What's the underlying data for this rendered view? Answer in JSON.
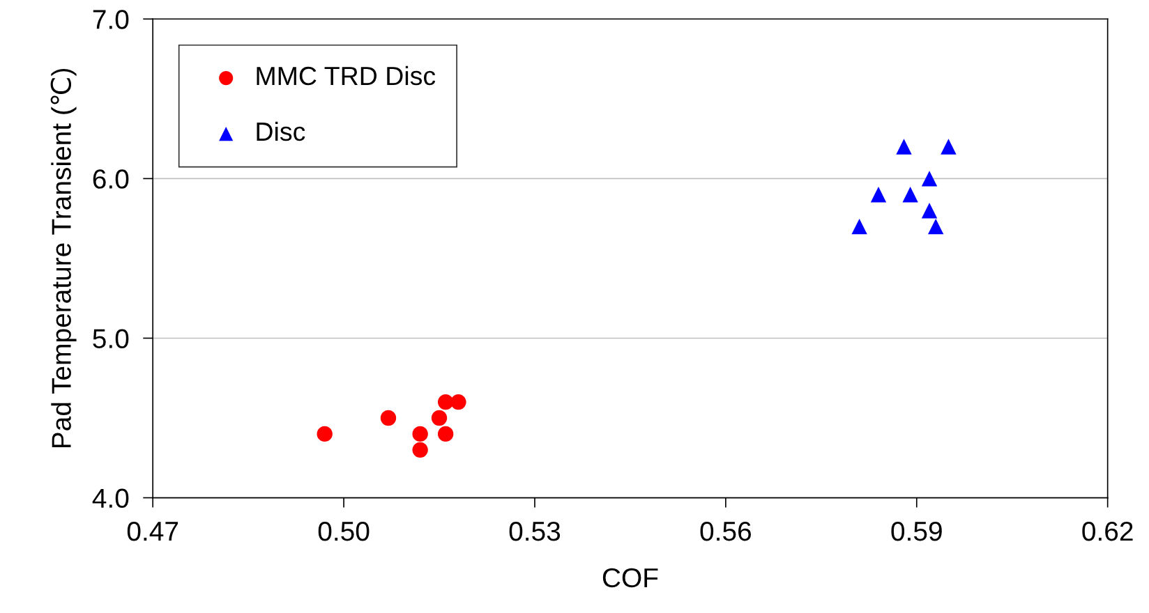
{
  "chart_data": {
    "type": "scatter",
    "xlabel": "COF",
    "ylabel": "Pad Temperature Transient (℃)",
    "xlim": [
      0.47,
      0.62
    ],
    "xticks": [
      {
        "value": 0.47,
        "label": "0.47"
      },
      {
        "value": 0.5,
        "label": "0.50"
      },
      {
        "value": 0.53,
        "label": "0.53"
      },
      {
        "value": 0.56,
        "label": "0.56"
      },
      {
        "value": 0.59,
        "label": "0.59"
      },
      {
        "value": 0.62,
        "label": "0.62"
      }
    ],
    "ylim": [
      4.0,
      7.0
    ],
    "yticks": [
      {
        "value": 4,
        "label": "4.0"
      },
      {
        "value": 5,
        "label": "5.0"
      },
      {
        "value": 6,
        "label": "6.0"
      },
      {
        "value": 7,
        "label": "7.0"
      }
    ],
    "grid": "y",
    "legend": "top left",
    "series": [
      {
        "name": "MMC TRD Disc",
        "color": "#ff0000",
        "marker": "circle",
        "x": [
          0.497,
          0.507,
          0.512,
          0.512,
          0.515,
          0.516,
          0.516,
          0.518
        ],
        "values": [
          4.4,
          4.5,
          4.4,
          4.3,
          4.5,
          4.6,
          4.4,
          4.6
        ]
      },
      {
        "name": "Disc",
        "color": "#0000ff",
        "marker": "triangle",
        "x": [
          0.581,
          0.584,
          0.588,
          0.589,
          0.592,
          0.592,
          0.593,
          0.595
        ],
        "values": [
          5.7,
          5.9,
          6.2,
          5.9,
          6.0,
          5.8,
          5.7,
          6.2
        ]
      }
    ]
  }
}
